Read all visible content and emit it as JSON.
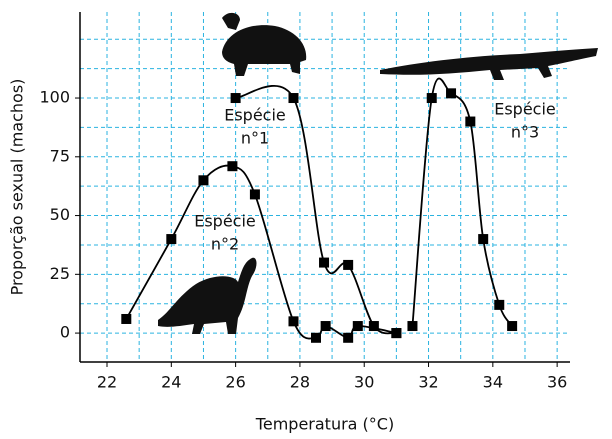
{
  "chart_data": {
    "type": "line",
    "x_label": "Temperatura (°C)",
    "y_label": "Proporção sexual (machos)",
    "annotations": [
      {
        "lines": [
          "Espécie",
          "n°1"
        ]
      },
      {
        "lines": [
          "Espécie",
          "n°2"
        ]
      },
      {
        "lines": [
          "Espécie",
          "n°3"
        ]
      }
    ],
    "series": [
      {
        "color": "#000000",
        "x": [
          26.0,
          27.8,
          28.75,
          29.5,
          30.3,
          31.0
        ],
        "values": [
          100,
          100,
          30,
          29,
          3,
          0
        ]
      },
      {
        "color": "#000000",
        "x": [
          22.6,
          24.0,
          25.0,
          25.9,
          26.6,
          27.8,
          28.5,
          28.8,
          29.5,
          29.8,
          31.0
        ],
        "values": [
          6,
          40,
          65,
          71,
          59,
          5,
          -2,
          3,
          -2,
          3,
          0
        ]
      },
      {
        "color": "#000000",
        "x": [
          31.5,
          32.1,
          32.7,
          33.3,
          33.7,
          34.2,
          34.6
        ],
        "values": [
          3,
          100,
          102,
          90,
          40,
          12,
          3
        ]
      }
    ],
    "xlim": [
      21.16,
      36.4
    ],
    "ylim": [
      -12.3,
      136.6
    ],
    "xticks": [
      22,
      24,
      26,
      28,
      30,
      32,
      34,
      36
    ],
    "yticks": [
      0,
      25,
      50,
      75,
      100
    ],
    "x_minor_ticks": [
      23,
      25,
      27,
      29,
      31,
      33,
      35
    ],
    "y_minor_ticks": [
      12.5,
      37.5,
      62.5,
      87.5,
      112.5,
      125
    ],
    "grid": true,
    "grid_color": "#2bb3e0"
  }
}
